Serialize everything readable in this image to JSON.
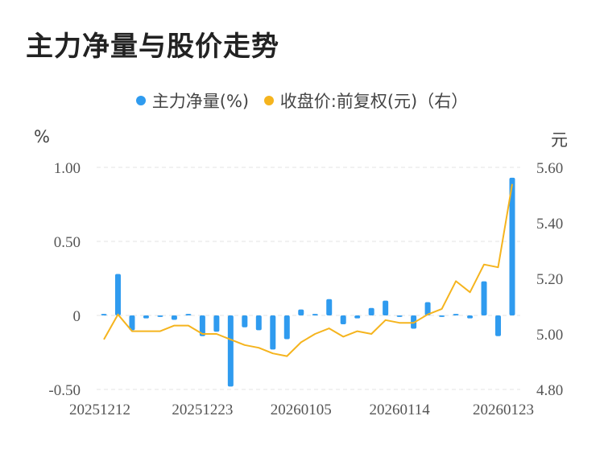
{
  "title": "主力净量与股价走势",
  "chart_data": {
    "type": "bar+line",
    "title": "主力净量与股价走势",
    "legend": [
      {
        "name": "主力净量(%)",
        "color": "#2f9bef"
      },
      {
        "name": "收盘价:前复权(元)（右）",
        "color": "#f5b41e"
      }
    ],
    "y_left_unit": "%",
    "y_right_unit": "元",
    "y_left_ticks": [
      "1.00",
      "0.50",
      "0",
      "-0.50"
    ],
    "y_left_range": [
      -0.5,
      1.0
    ],
    "y_right_ticks": [
      "5.60",
      "5.40",
      "5.20",
      "5.00",
      "4.80"
    ],
    "y_right_range": [
      4.8,
      5.6
    ],
    "x_tick_labels": [
      "20251212",
      "20251223",
      "20260105",
      "20260114",
      "20260123"
    ],
    "x_tick_index": [
      0,
      7,
      14,
      21,
      29
    ],
    "bar_color": "#2f9bef",
    "line_color": "#f5b41e",
    "series": [
      {
        "name": "主力净量(%)",
        "type": "bar",
        "values": [
          0.01,
          0.28,
          -0.1,
          -0.02,
          -0.01,
          -0.03,
          0.01,
          -0.14,
          -0.11,
          -0.48,
          -0.08,
          -0.1,
          -0.23,
          -0.16,
          0.04,
          0.01,
          0.11,
          -0.06,
          -0.02,
          0.05,
          0.1,
          -0.01,
          -0.09,
          0.09,
          -0.01,
          0.01,
          -0.02,
          0.23,
          -0.14,
          0.93
        ]
      },
      {
        "name": "收盘价:前复权(元)（右）",
        "type": "line",
        "values": [
          4.98,
          5.07,
          5.01,
          5.01,
          5.01,
          5.03,
          5.03,
          5.0,
          5.0,
          4.98,
          4.96,
          4.95,
          4.93,
          4.92,
          4.97,
          5.0,
          5.02,
          4.99,
          5.01,
          5.0,
          5.05,
          5.04,
          5.04,
          5.07,
          5.09,
          5.19,
          5.15,
          5.25,
          5.24,
          5.54
        ]
      }
    ]
  }
}
